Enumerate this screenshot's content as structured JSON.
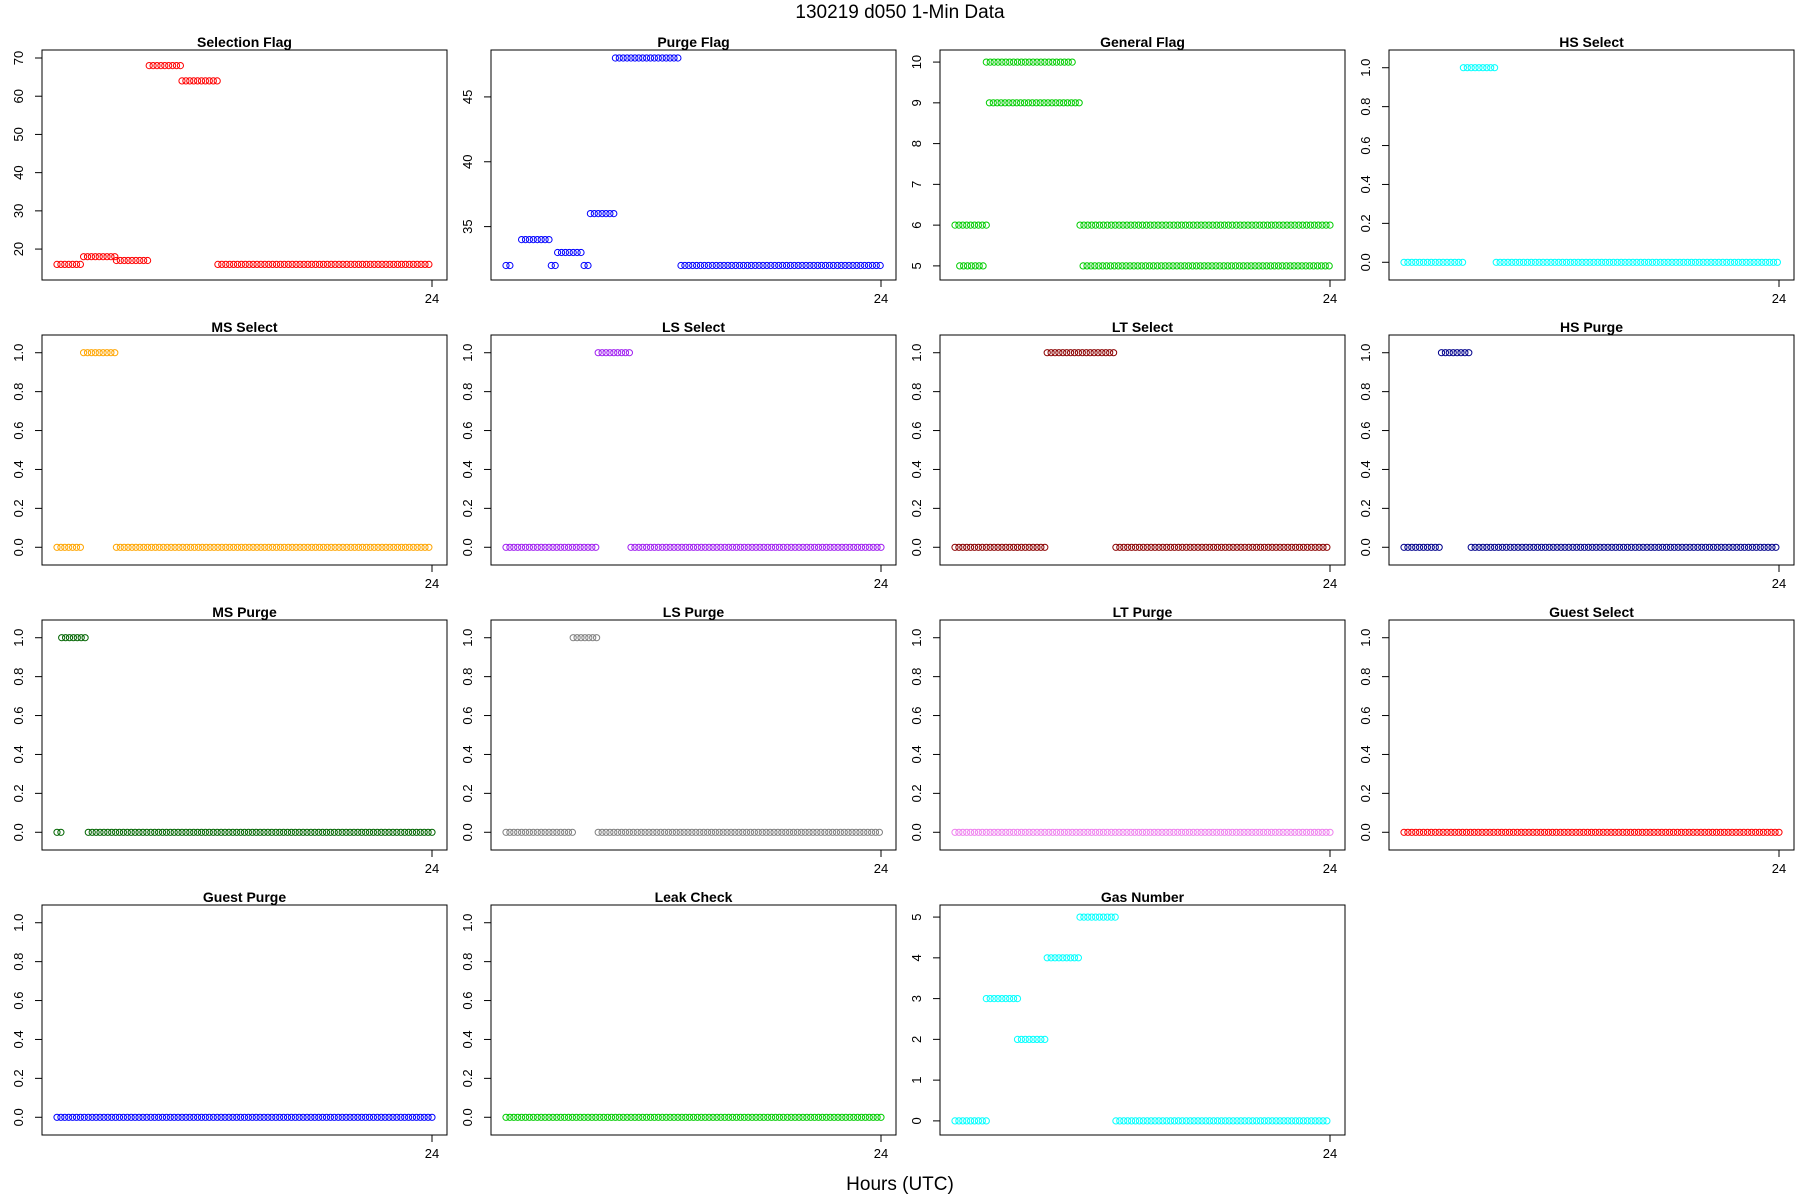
{
  "figure": {
    "title": "130219    d050    1-Min Data",
    "xlabel": "Hours (UTC)"
  },
  "chart_data": [
    {
      "type": "scatter",
      "title": "Selection Flag",
      "color": "#ff0000",
      "ylim": [
        14,
        70
      ],
      "yticks": [
        20,
        30,
        40,
        50,
        60,
        70
      ],
      "xtick": "24",
      "segments": [
        [
          0.0,
          1.7,
          16
        ],
        [
          1.7,
          3.8,
          18
        ],
        [
          3.8,
          5.9,
          17
        ],
        [
          5.9,
          8.0,
          68
        ],
        [
          8.0,
          10.3,
          64
        ],
        [
          10.3,
          24.0,
          16
        ]
      ]
    },
    {
      "type": "scatter",
      "title": "Purge Flag",
      "color": "#0000ff",
      "ylim": [
        31.5,
        48
      ],
      "yticks": [
        35,
        40,
        45
      ],
      "xtick": "24",
      "segments": [
        [
          0.0,
          0.4,
          32
        ],
        [
          1.0,
          2.9,
          34
        ],
        [
          2.9,
          3.3,
          32
        ],
        [
          3.3,
          5.0,
          33
        ],
        [
          5.0,
          5.4,
          32
        ],
        [
          5.4,
          7.0,
          36
        ],
        [
          7.0,
          11.2,
          48
        ],
        [
          11.2,
          24.0,
          32
        ]
      ]
    },
    {
      "type": "scatter",
      "title": "General Flag",
      "color": "#00cc00",
      "ylim": [
        4.85,
        10.1
      ],
      "yticks": [
        5,
        6,
        7,
        8,
        9,
        10
      ],
      "xtick": "24",
      "segments": [
        [
          0.0,
          2.0,
          6
        ],
        [
          0.3,
          2.0,
          5
        ],
        [
          2.0,
          7.7,
          10
        ],
        [
          2.2,
          8.0,
          9
        ],
        [
          8.0,
          24.0,
          6
        ],
        [
          8.2,
          24.0,
          5
        ]
      ]
    },
    {
      "type": "scatter",
      "title": "HS Select",
      "color": "#00ffff",
      "ylim": [
        -0.05,
        1.05
      ],
      "yticks": [
        0.0,
        0.2,
        0.4,
        0.6,
        0.8,
        1.0
      ],
      "xtick": "24",
      "segments": [
        [
          0.0,
          3.8,
          0
        ],
        [
          3.8,
          5.9,
          1
        ],
        [
          5.9,
          24.0,
          0
        ]
      ]
    },
    {
      "type": "scatter",
      "title": "MS Select",
      "color": "#ffa500",
      "ylim": [
        -0.05,
        1.05
      ],
      "yticks": [
        0.0,
        0.2,
        0.4,
        0.6,
        0.8,
        1.0
      ],
      "xtick": "24",
      "segments": [
        [
          0.0,
          1.7,
          0
        ],
        [
          1.7,
          3.8,
          1
        ],
        [
          3.8,
          24.0,
          0
        ]
      ]
    },
    {
      "type": "scatter",
      "title": "LS Select",
      "color": "#a020f0",
      "ylim": [
        -0.05,
        1.05
      ],
      "yticks": [
        0.0,
        0.2,
        0.4,
        0.6,
        0.8,
        1.0
      ],
      "xtick": "24",
      "segments": [
        [
          0.0,
          5.9,
          0
        ],
        [
          5.9,
          8.0,
          1
        ],
        [
          8.0,
          24.0,
          0
        ]
      ]
    },
    {
      "type": "scatter",
      "title": "LT Select",
      "color": "#8b0000",
      "ylim": [
        -0.05,
        1.05
      ],
      "yticks": [
        0.0,
        0.2,
        0.4,
        0.6,
        0.8,
        1.0
      ],
      "xtick": "24",
      "segments": [
        [
          0.0,
          5.9,
          0
        ],
        [
          5.9,
          10.3,
          1
        ],
        [
          10.3,
          24.0,
          0
        ]
      ]
    },
    {
      "type": "scatter",
      "title": "HS Purge",
      "color": "#00008b",
      "ylim": [
        -0.05,
        1.05
      ],
      "yticks": [
        0.0,
        0.2,
        0.4,
        0.6,
        0.8,
        1.0
      ],
      "xtick": "24",
      "segments": [
        [
          0.0,
          2.4,
          0
        ],
        [
          2.4,
          4.3,
          1
        ],
        [
          4.3,
          24.0,
          0
        ]
      ]
    },
    {
      "type": "scatter",
      "title": "MS Purge",
      "color": "#006400",
      "ylim": [
        -0.05,
        1.05
      ],
      "yticks": [
        0.0,
        0.2,
        0.4,
        0.6,
        0.8,
        1.0
      ],
      "xtick": "24",
      "segments": [
        [
          0.0,
          0.3,
          0
        ],
        [
          0.3,
          2.0,
          1
        ],
        [
          2.0,
          24.0,
          0
        ]
      ]
    },
    {
      "type": "scatter",
      "title": "LS Purge",
      "color": "#808080",
      "ylim": [
        -0.05,
        1.05
      ],
      "yticks": [
        0.0,
        0.2,
        0.4,
        0.6,
        0.8,
        1.0
      ],
      "xtick": "24",
      "segments": [
        [
          0.0,
          4.3,
          0
        ],
        [
          4.3,
          5.9,
          1
        ],
        [
          5.9,
          24.0,
          0
        ]
      ]
    },
    {
      "type": "scatter",
      "title": "LT Purge",
      "color": "#ee82ee",
      "ylim": [
        -0.05,
        1.05
      ],
      "yticks": [
        0.0,
        0.2,
        0.4,
        0.6,
        0.8,
        1.0
      ],
      "xtick": "24",
      "segments": [
        [
          0.0,
          24.0,
          0
        ]
      ]
    },
    {
      "type": "scatter",
      "title": "Guest Select",
      "color": "#ff0000",
      "ylim": [
        -0.05,
        1.05
      ],
      "yticks": [
        0.0,
        0.2,
        0.4,
        0.6,
        0.8,
        1.0
      ],
      "xtick": "24",
      "segments": [
        [
          0.0,
          24.0,
          0
        ]
      ]
    },
    {
      "type": "scatter",
      "title": "Guest Purge",
      "color": "#0000ff",
      "ylim": [
        -0.05,
        1.05
      ],
      "yticks": [
        0.0,
        0.2,
        0.4,
        0.6,
        0.8,
        1.0
      ],
      "xtick": "24",
      "segments": [
        [
          0.0,
          24.0,
          0
        ]
      ]
    },
    {
      "type": "scatter",
      "title": "Leak Check",
      "color": "#00cc00",
      "ylim": [
        -0.05,
        1.05
      ],
      "yticks": [
        0.0,
        0.2,
        0.4,
        0.6,
        0.8,
        1.0
      ],
      "xtick": "24",
      "segments": [
        [
          0.0,
          24.0,
          0
        ]
      ]
    },
    {
      "type": "scatter",
      "title": "Gas Number",
      "color": "#00ffff",
      "ylim": [
        -0.15,
        5.1
      ],
      "yticks": [
        0,
        1,
        2,
        3,
        4,
        5
      ],
      "xtick": "24",
      "segments": [
        [
          0.0,
          2.0,
          0
        ],
        [
          2.0,
          4.0,
          3
        ],
        [
          4.0,
          5.9,
          2
        ],
        [
          5.9,
          8.0,
          4
        ],
        [
          8.0,
          10.3,
          5
        ],
        [
          10.3,
          24.0,
          0
        ]
      ]
    }
  ]
}
